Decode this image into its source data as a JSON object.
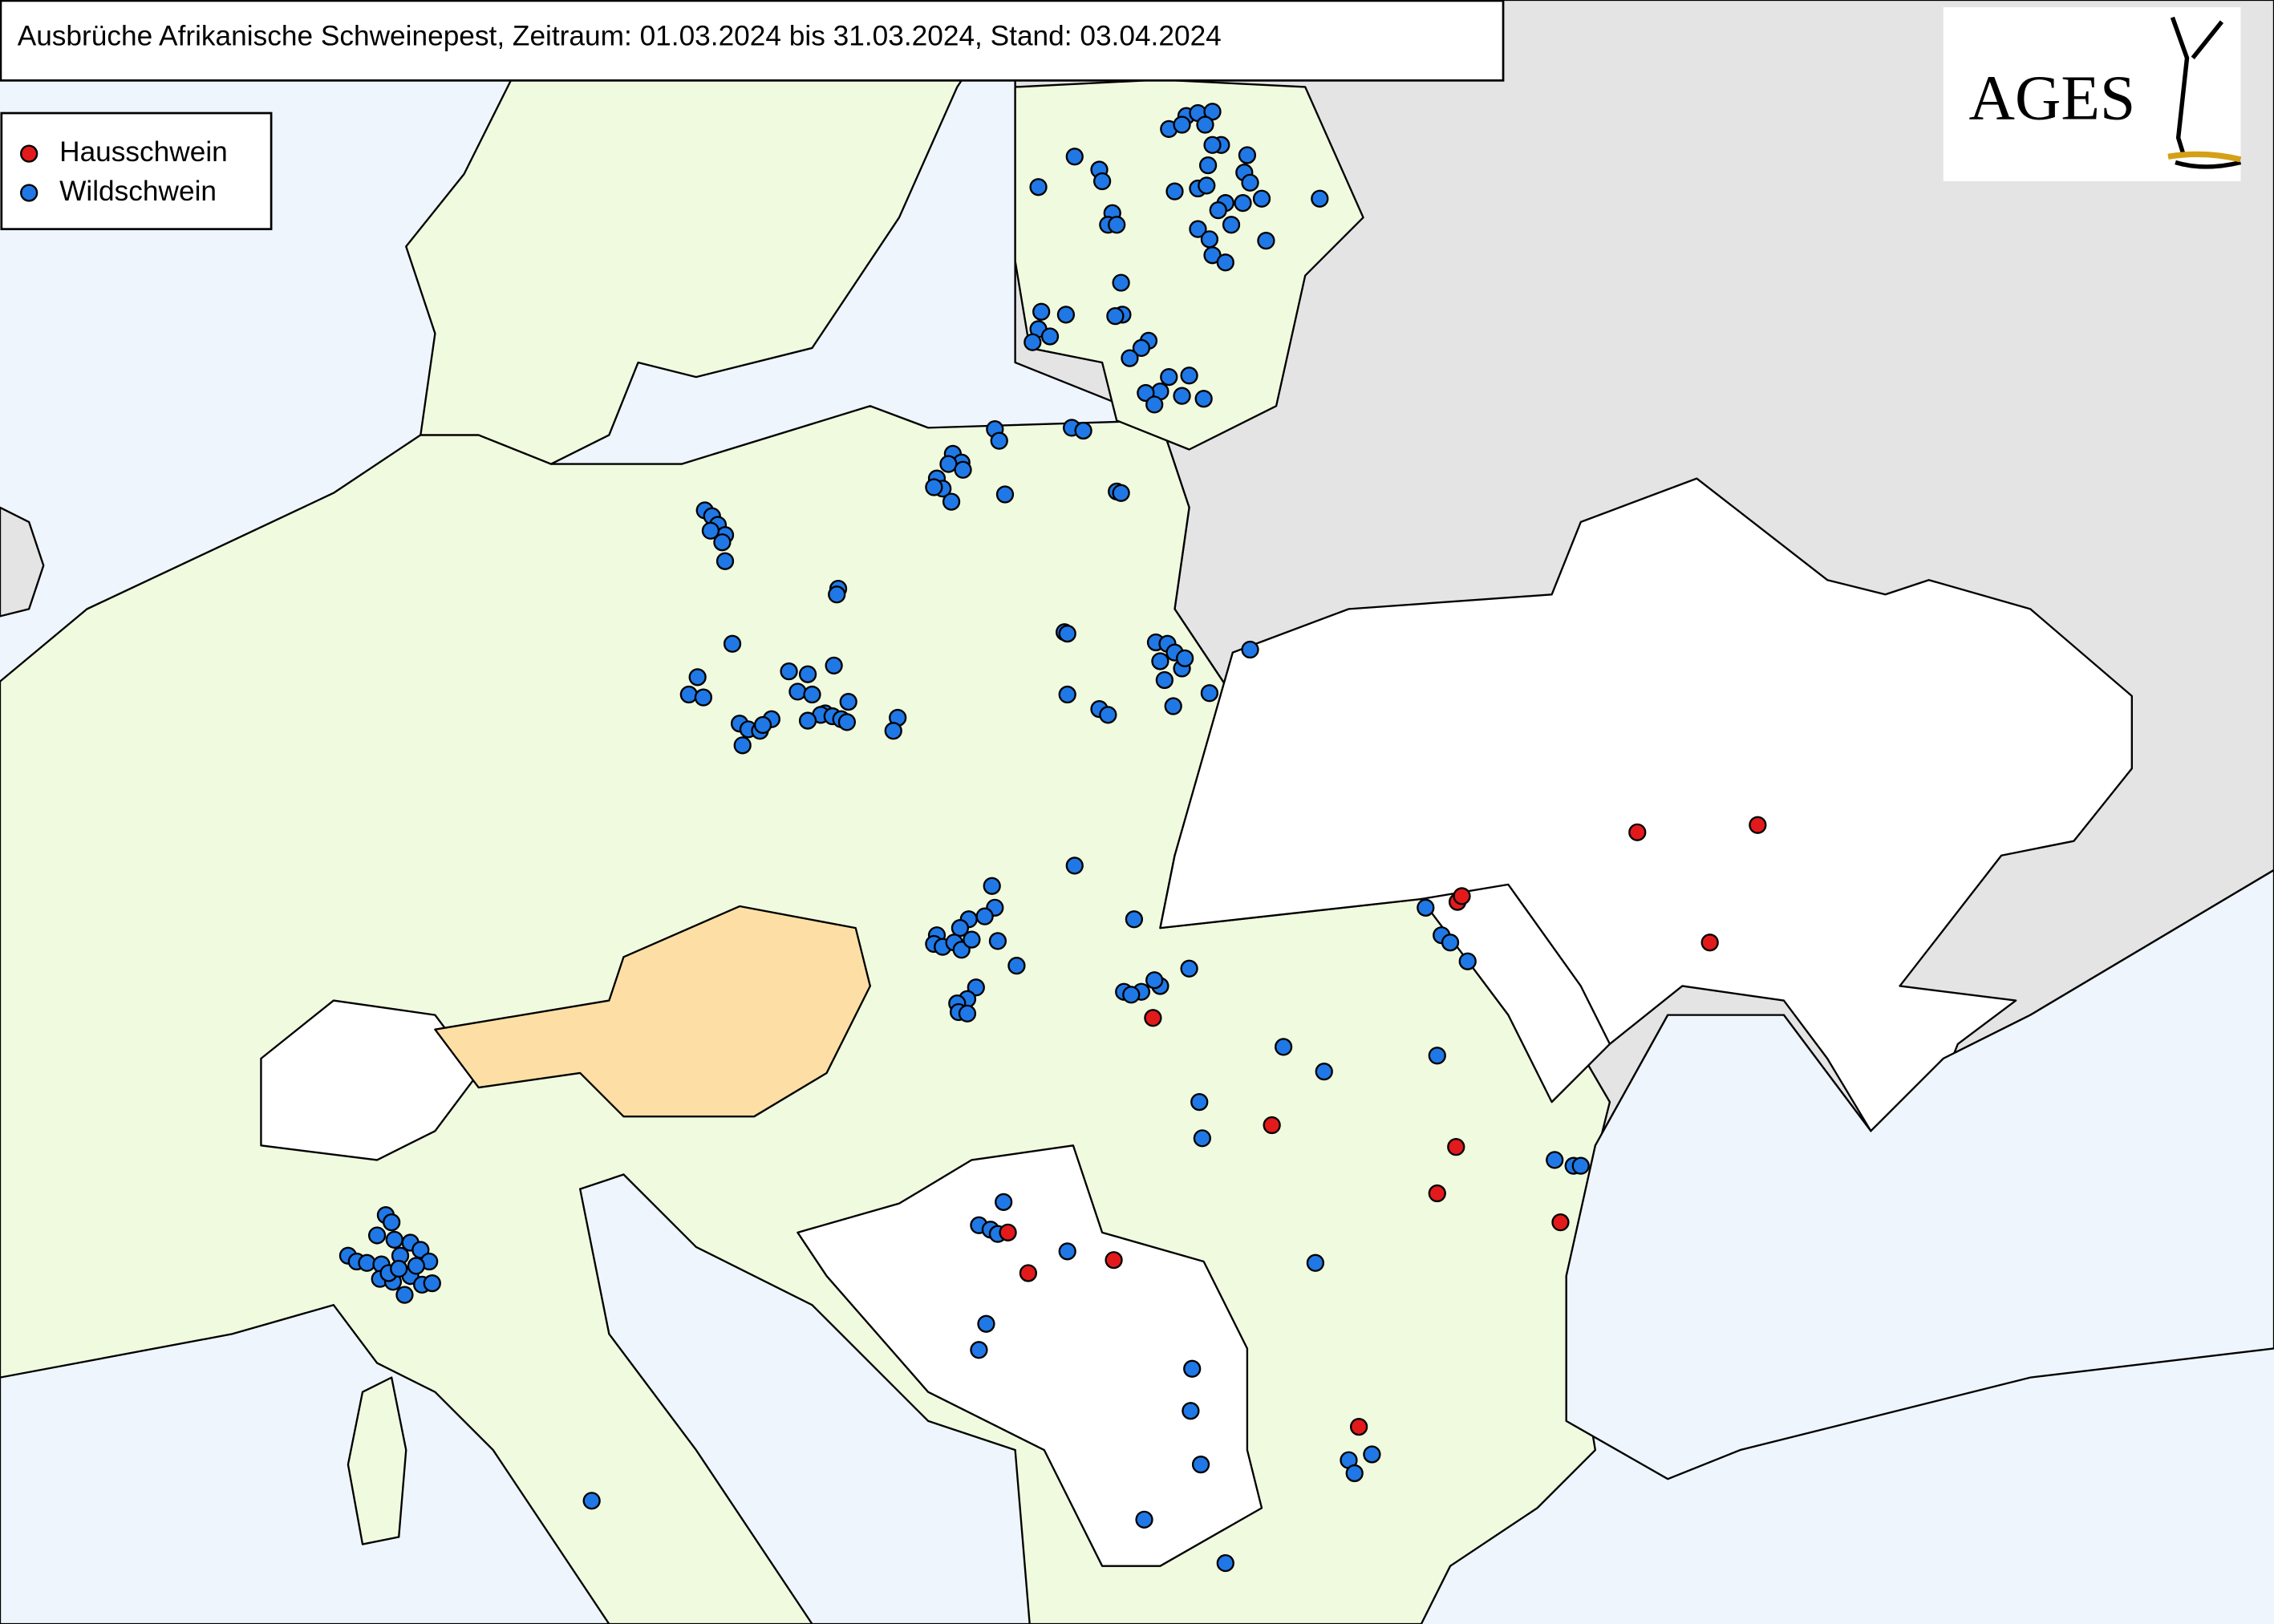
{
  "title": "Ausbrüche Afrikanische Schweinepest, Zeitraum: 01.03.2024 bis 31.03.2024, Stand: 03.04.2024",
  "legend": [
    {
      "label": "Hausschwein",
      "color": "#e31a1c"
    },
    {
      "label": "Wildschwein",
      "color": "#1f78e6"
    }
  ],
  "logo": "AGES"
}
